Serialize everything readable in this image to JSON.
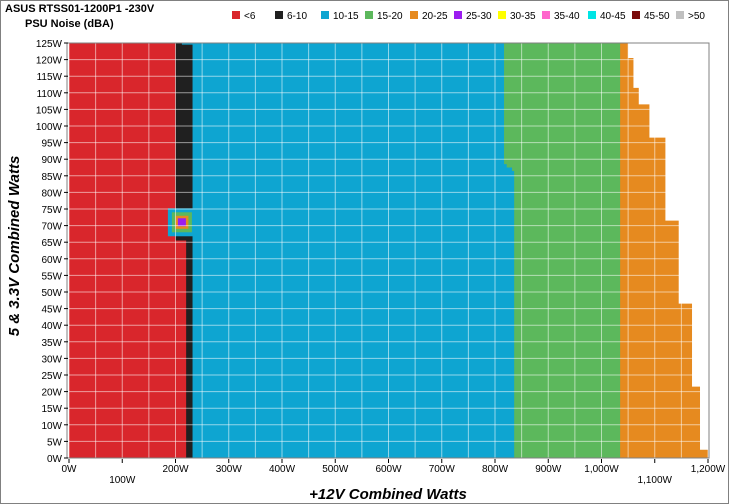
{
  "chart_data": {
    "type": "heatmap",
    "title": "ASUS RTSS01-1200P1 -230V",
    "subtitle": "PSU Noise (dBA)",
    "xlabel": "+12V Combined Watts",
    "ylabel": "5 & 3.3V Combined Watts",
    "xlim": [
      0,
      1200
    ],
    "ylim": [
      0,
      125
    ],
    "x_ticks_row1": [
      "0W",
      "200W",
      "300W",
      "400W",
      "500W",
      "600W",
      "700W",
      "800W",
      "900W",
      "1,000W",
      "1,200W"
    ],
    "x_ticks_row2": [
      "100W",
      "1,100W"
    ],
    "y_ticks": [
      "0W",
      "5W",
      "10W",
      "15W",
      "20W",
      "25W",
      "30W",
      "35W",
      "40W",
      "45W",
      "50W",
      "55W",
      "60W",
      "65W",
      "70W",
      "75W",
      "80W",
      "85W",
      "90W",
      "95W",
      "100W",
      "105W",
      "110W",
      "115W",
      "120W",
      "125W"
    ],
    "grid": true,
    "legend_position": "top",
    "legend": [
      {
        "label": "<6",
        "color": "#d9262c"
      },
      {
        "label": "6-10",
        "color": "#202020"
      },
      {
        "label": "10-15",
        "color": "#0ea5d1"
      },
      {
        "label": "15-20",
        "color": "#5cb85c"
      },
      {
        "label": "20-25",
        "color": "#e68a1f"
      },
      {
        "label": "25-30",
        "color": "#9b1cf0"
      },
      {
        "label": "30-35",
        "color": "#ffff00"
      },
      {
        "label": "35-40",
        "color": "#ff66cc"
      },
      {
        "label": "40-45",
        "color": "#00e5e5"
      },
      {
        "label": "45-50",
        "color": "#7a0a0a"
      },
      {
        "label": ">50",
        "color": "#c0c0c0"
      }
    ],
    "regions": [
      {
        "range": "<6",
        "color": "#d9262c",
        "boundary_max_12v": [
          [
            0,
            220
          ],
          [
            65,
            220
          ],
          [
            66,
            200
          ],
          [
            125,
            200
          ]
        ]
      },
      {
        "range": "6-10",
        "color": "#202020",
        "boundary_max_12v": [
          [
            0,
            232
          ],
          [
            125,
            212
          ]
        ]
      },
      {
        "range": "10-15",
        "color": "#0ea5d1",
        "boundary_max_12v": [
          [
            0,
            836
          ],
          [
            86,
            836
          ],
          [
            87,
            832
          ],
          [
            88,
            822
          ],
          [
            89,
            817
          ],
          [
            125,
            817
          ]
        ]
      },
      {
        "range": "15-20",
        "color": "#5cb85c",
        "boundary_max_12v": [
          [
            0,
            1035
          ],
          [
            125,
            1035
          ]
        ]
      },
      {
        "range": "20-25",
        "color": "#e68a1f",
        "boundary_max_12v": [
          [
            0,
            1200
          ],
          [
            2,
            1200
          ],
          [
            3,
            1185
          ],
          [
            21,
            1185
          ],
          [
            22,
            1170
          ],
          [
            46,
            1170
          ],
          [
            47,
            1145
          ],
          [
            71,
            1145
          ],
          [
            72,
            1120
          ],
          [
            96,
            1120
          ],
          [
            97,
            1090
          ],
          [
            106,
            1090
          ],
          [
            107,
            1070
          ],
          [
            111,
            1070
          ],
          [
            112,
            1060
          ],
          [
            120,
            1060
          ],
          [
            121,
            1050
          ],
          [
            125,
            1050
          ]
        ]
      }
    ],
    "hotspot": {
      "x12v": 212,
      "y5v": 71,
      "ranges": [
        "10-15",
        "15-20",
        "20-25",
        "25-30"
      ]
    }
  }
}
